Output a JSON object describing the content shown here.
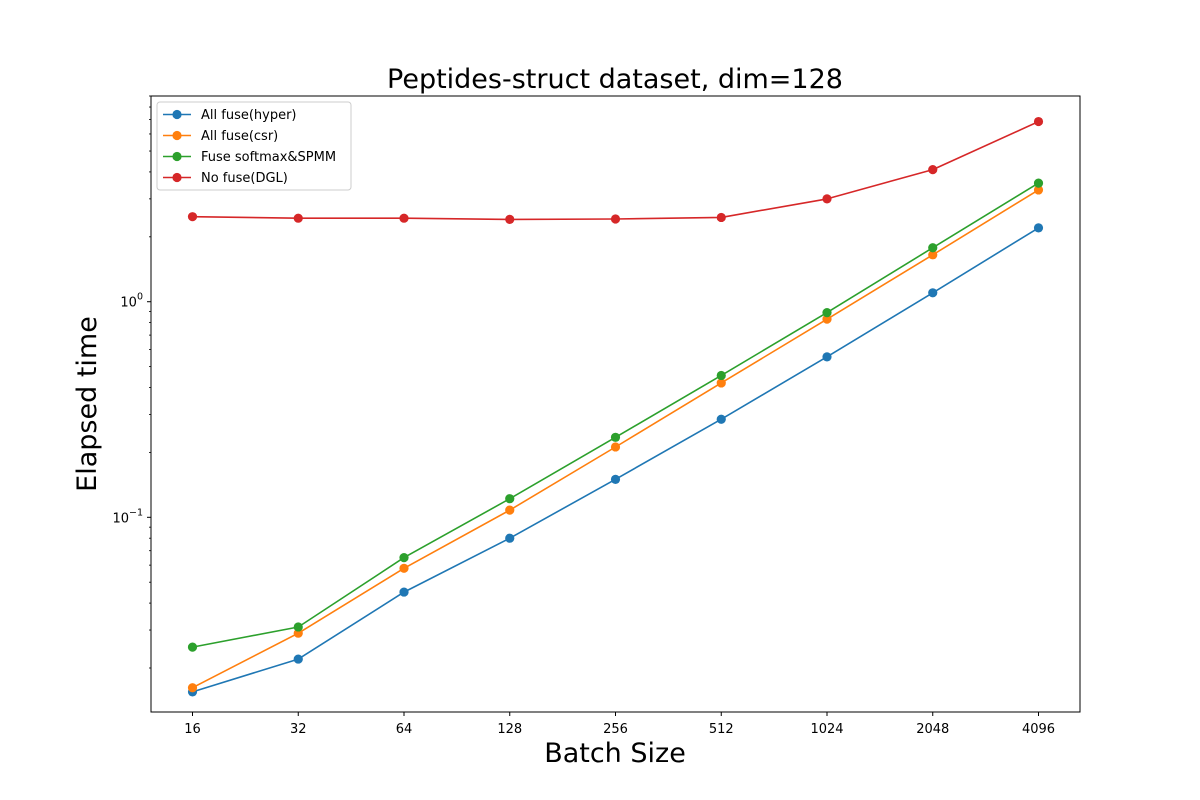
{
  "chart_data": {
    "type": "line",
    "title": "Peptides-struct dataset, dim=128",
    "xlabel": "Batch Size",
    "ylabel": "Elapsed time",
    "x_scale": "log2",
    "y_scale": "log10",
    "ylim": [
      0.0125,
      9
    ],
    "categories": [
      "16",
      "32",
      "64",
      "128",
      "256",
      "512",
      "1024",
      "2048",
      "4096"
    ],
    "y_ticks": [
      {
        "value": 0.1,
        "base": "10",
        "exp": "−1"
      },
      {
        "value": 1,
        "base": "10",
        "exp": "0"
      }
    ],
    "legend_position": "upper-left",
    "grid": false,
    "series": [
      {
        "name": "All fuse(hyper)",
        "color": "#1f77b4",
        "values": [
          0.0155,
          0.022,
          0.045,
          0.08,
          0.15,
          0.285,
          0.555,
          1.1,
          2.2
        ]
      },
      {
        "name": "All fuse(csr)",
        "color": "#ff7f0e",
        "values": [
          0.0162,
          0.029,
          0.058,
          0.108,
          0.212,
          0.42,
          0.83,
          1.65,
          3.3
        ]
      },
      {
        "name": "Fuse softmax&SPMM",
        "color": "#2ca02c",
        "values": [
          0.025,
          0.031,
          0.065,
          0.122,
          0.235,
          0.455,
          0.89,
          1.78,
          3.55
        ]
      },
      {
        "name": "No fuse(DGL)",
        "color": "#d62728",
        "values": [
          2.48,
          2.44,
          2.44,
          2.41,
          2.42,
          2.46,
          3.0,
          4.1,
          6.85
        ]
      }
    ]
  }
}
